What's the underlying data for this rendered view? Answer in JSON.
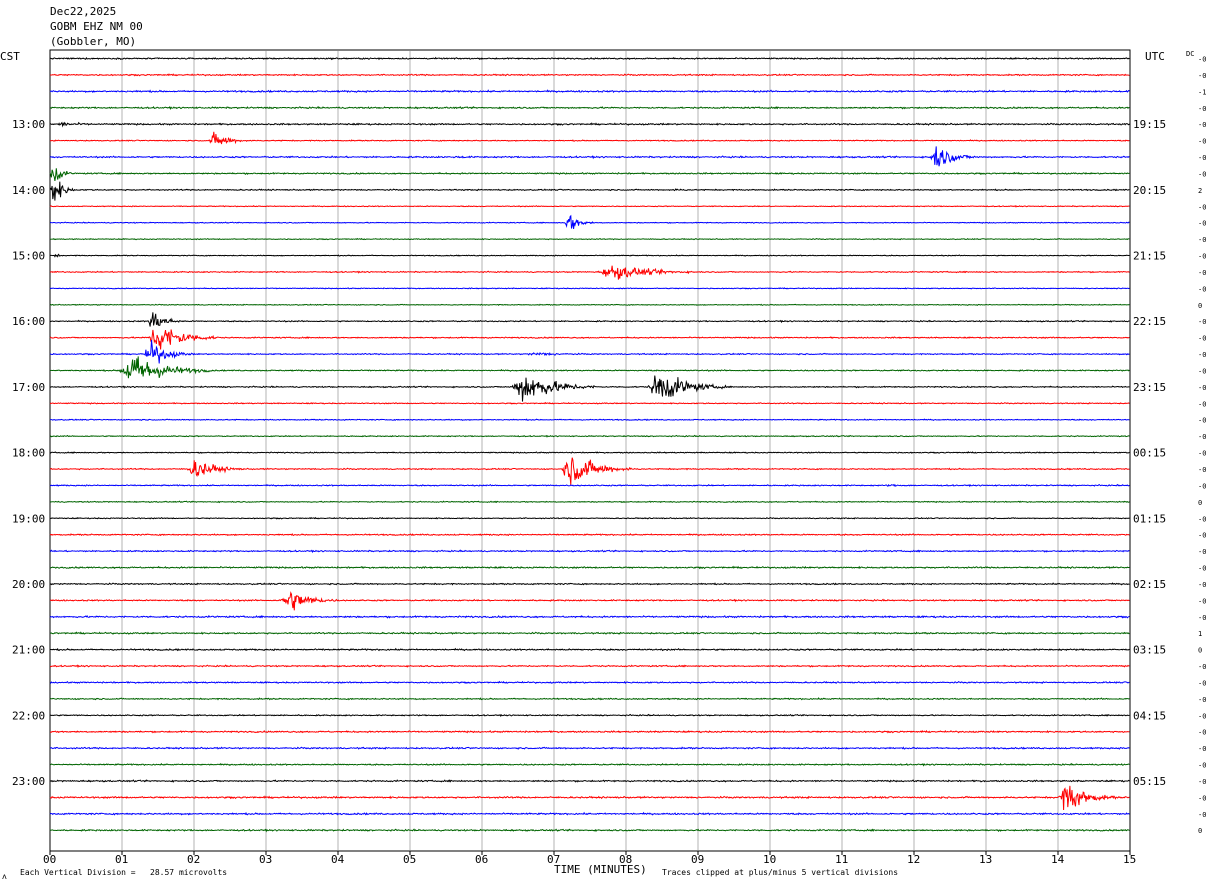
{
  "header": {
    "date": "Dec22,2025",
    "station": "GOBM EHZ NM 00",
    "location": "(Gobbler, MO)"
  },
  "left_timezone": "CST",
  "right_timezone": "UTC",
  "dc_label": "DC",
  "x_axis_title": "TIME (MINUTES)",
  "footer": {
    "division_note": "Each Vertical Division =   28.57 microvolts",
    "clip_note": "Traces clipped at plus/minus 5 vertical divisions",
    "corner_mark": "ᴧ"
  },
  "colors": {
    "trace_cycle": [
      "#000000",
      "#ff0000",
      "#0000ff",
      "#006400"
    ],
    "grid": "#808080"
  },
  "chart_data": {
    "type": "line",
    "title": "",
    "xlabel": "TIME (MINUTES)",
    "ylabel": "",
    "xlim": [
      0,
      15
    ],
    "x_ticks": [
      "00",
      "01",
      "02",
      "03",
      "04",
      "05",
      "06",
      "07",
      "08",
      "09",
      "10",
      "11",
      "12",
      "13",
      "14",
      "15"
    ],
    "trace_interval_minutes": 15,
    "traces_per_hour": 4,
    "trace_count": 48,
    "first_trace_start_local": "12:00",
    "hour_labels_local": [
      "13:00",
      "14:00",
      "15:00",
      "16:00",
      "17:00",
      "18:00",
      "19:00",
      "20:00",
      "21:00",
      "22:00",
      "23:00"
    ],
    "hour_labels_utc": [
      "19:15",
      "20:15",
      "21:15",
      "22:15",
      "23:15",
      "00:15",
      "01:15",
      "02:15",
      "03:15",
      "04:15",
      "05:15"
    ],
    "hour_label_trace_index": [
      4,
      8,
      12,
      16,
      20,
      24,
      28,
      32,
      36,
      40,
      44
    ],
    "dc_offsets": [
      "-0",
      "-0",
      "-1",
      "-0",
      "-0",
      "-0",
      "-0",
      "-0",
      "2",
      "-0",
      "-0",
      "-0",
      "-0",
      "-0",
      "-0",
      "0",
      "-0",
      "-0",
      "-0",
      "-0",
      "-0",
      "-0",
      "-0",
      "-0",
      "-0",
      "-0",
      "-0",
      "0",
      "-0",
      "-0",
      "-0",
      "-0",
      "-0",
      "-0",
      "-0",
      "1",
      "0",
      "-0",
      "-0",
      "-0",
      "-0",
      "-0",
      "-0",
      "-0",
      "-0",
      "-0",
      "-0",
      "0"
    ],
    "noise_level_divisions": [
      0.18,
      0.18,
      0.22,
      0.2,
      0.2,
      0.14,
      0.2,
      0.18,
      0.16,
      0.12,
      0.12,
      0.12,
      0.12,
      0.15,
      0.12,
      0.12,
      0.16,
      0.16,
      0.16,
      0.16,
      0.16,
      0.14,
      0.14,
      0.14,
      0.14,
      0.16,
      0.16,
      0.14,
      0.14,
      0.18,
      0.18,
      0.2,
      0.18,
      0.18,
      0.22,
      0.2,
      0.2,
      0.18,
      0.18,
      0.18,
      0.16,
      0.2,
      0.2,
      0.18,
      0.2,
      0.22,
      0.22,
      0.2
    ],
    "events": [
      {
        "trace": 4,
        "start_min": 0.0,
        "duration_min": 1.2,
        "peak_divisions": 0.6
      },
      {
        "trace": 5,
        "start_min": 2.2,
        "duration_min": 0.6,
        "peak_divisions": 2.5
      },
      {
        "trace": 6,
        "start_min": 12.2,
        "duration_min": 0.7,
        "peak_divisions": 3.8
      },
      {
        "trace": 6,
        "start_min": 5.5,
        "duration_min": 1.2,
        "peak_divisions": 0.35
      },
      {
        "trace": 7,
        "start_min": 0.0,
        "duration_min": 0.3,
        "peak_divisions": 4.2
      },
      {
        "trace": 8,
        "start_min": 0.0,
        "duration_min": 0.35,
        "peak_divisions": 5
      },
      {
        "trace": 8,
        "start_min": 8.5,
        "duration_min": 1.2,
        "peak_divisions": 0.3
      },
      {
        "trace": 10,
        "start_min": 7.15,
        "duration_min": 0.4,
        "peak_divisions": 3.2
      },
      {
        "trace": 12,
        "start_min": 0.05,
        "duration_min": 0.15,
        "peak_divisions": 0.8
      },
      {
        "trace": 13,
        "start_min": 7.6,
        "duration_min": 1.5,
        "peak_divisions": 2.3
      },
      {
        "trace": 16,
        "start_min": 1.35,
        "duration_min": 0.5,
        "peak_divisions": 3.5
      },
      {
        "trace": 17,
        "start_min": 1.35,
        "duration_min": 1.0,
        "peak_divisions": 5
      },
      {
        "trace": 18,
        "start_min": 1.3,
        "duration_min": 0.7,
        "peak_divisions": 3.5
      },
      {
        "trace": 18,
        "start_min": 6.5,
        "duration_min": 1.8,
        "peak_divisions": 0.5
      },
      {
        "trace": 19,
        "start_min": 0.95,
        "duration_min": 1.3,
        "peak_divisions": 5
      },
      {
        "trace": 20,
        "start_min": 6.4,
        "duration_min": 1.2,
        "peak_divisions": 5
      },
      {
        "trace": 20,
        "start_min": 8.3,
        "duration_min": 1.1,
        "peak_divisions": 5
      },
      {
        "trace": 25,
        "start_min": 1.9,
        "duration_min": 0.8,
        "peak_divisions": 3.2
      },
      {
        "trace": 25,
        "start_min": 7.1,
        "duration_min": 1.0,
        "peak_divisions": 5
      },
      {
        "trace": 26,
        "start_min": 11.5,
        "duration_min": 1.2,
        "peak_divisions": 0.3
      },
      {
        "trace": 33,
        "start_min": 3.2,
        "duration_min": 0.8,
        "peak_divisions": 3.8
      },
      {
        "trace": 45,
        "start_min": 14.0,
        "duration_min": 0.8,
        "peak_divisions": 5
      }
    ]
  }
}
